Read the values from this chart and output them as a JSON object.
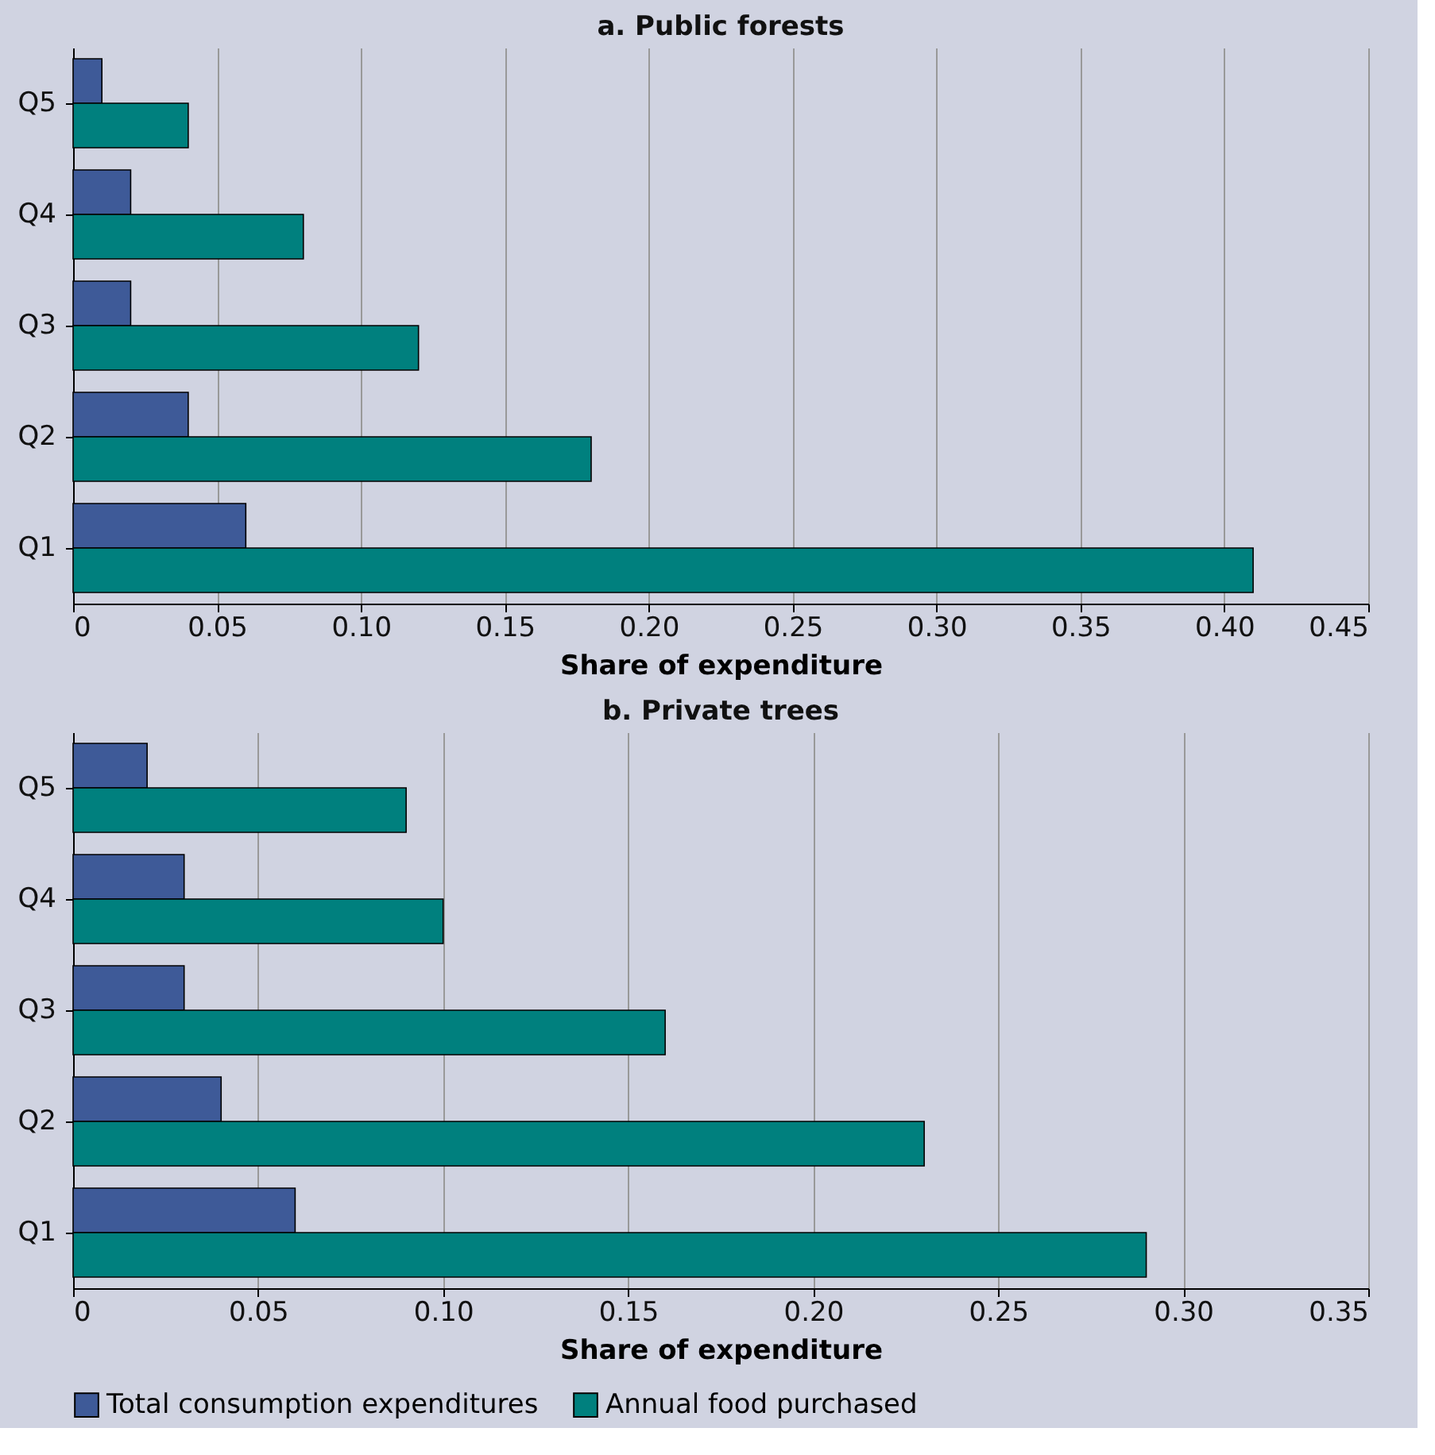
{
  "chart_data": [
    {
      "type": "bar",
      "orientation": "horizontal",
      "title": "a. Public forests",
      "xlabel": "Share of expenditure",
      "categories": [
        "Q5",
        "Q4",
        "Q3",
        "Q2",
        "Q1"
      ],
      "series": [
        {
          "color": "#3e5a98",
          "values": [
            0.01,
            0.02,
            0.02,
            0.04,
            0.06
          ]
        },
        {
          "color": "#00807e",
          "values": [
            0.04,
            0.08,
            0.12,
            0.18,
            0.41
          ]
        }
      ],
      "xlim": [
        0,
        0.45
      ],
      "xticks": [
        0,
        {
          "value": 0.05,
          "label": "0.05"
        },
        {
          "value": 0.1,
          "label": "0.10"
        },
        {
          "value": 0.15,
          "label": "0.15"
        },
        {
          "value": 0.2,
          "label": "0.20"
        },
        {
          "value": 0.25,
          "label": "0.25"
        },
        {
          "value": 0.3,
          "label": "0.30"
        },
        {
          "value": 0.35,
          "label": "0.35"
        },
        {
          "value": 0.4,
          "label": "0.40"
        },
        {
          "value": 0.45,
          "label": "0.45"
        }
      ],
      "grid": "x",
      "legend": false
    },
    {
      "type": "bar",
      "orientation": "horizontal",
      "title": "b. Private trees",
      "xlabel": "Share of expenditure",
      "categories": [
        "Q5",
        "Q4",
        "Q3",
        "Q2",
        "Q1"
      ],
      "series": [
        {
          "name": "Total consumption expenditures",
          "color": "#3e5a98",
          "values": [
            0.02,
            0.03,
            0.03,
            0.04,
            0.06
          ]
        },
        {
          "name": "Annual food purchased",
          "color": "#00807e",
          "values": [
            0.09,
            0.1,
            0.16,
            0.23,
            0.29
          ]
        }
      ],
      "xlim": [
        0,
        0.35
      ],
      "xticks": [
        0,
        {
          "value": 0.05,
          "label": "0.05"
        },
        {
          "value": 0.1,
          "label": "0.10"
        },
        {
          "value": 0.15,
          "label": "0.15"
        },
        {
          "value": 0.2,
          "label": "0.20"
        },
        {
          "value": 0.25,
          "label": "0.25"
        },
        {
          "value": 0.3,
          "label": "0.30"
        },
        {
          "value": 0.35,
          "label": "0.35"
        }
      ],
      "grid": "x",
      "legend": "bottom"
    }
  ]
}
